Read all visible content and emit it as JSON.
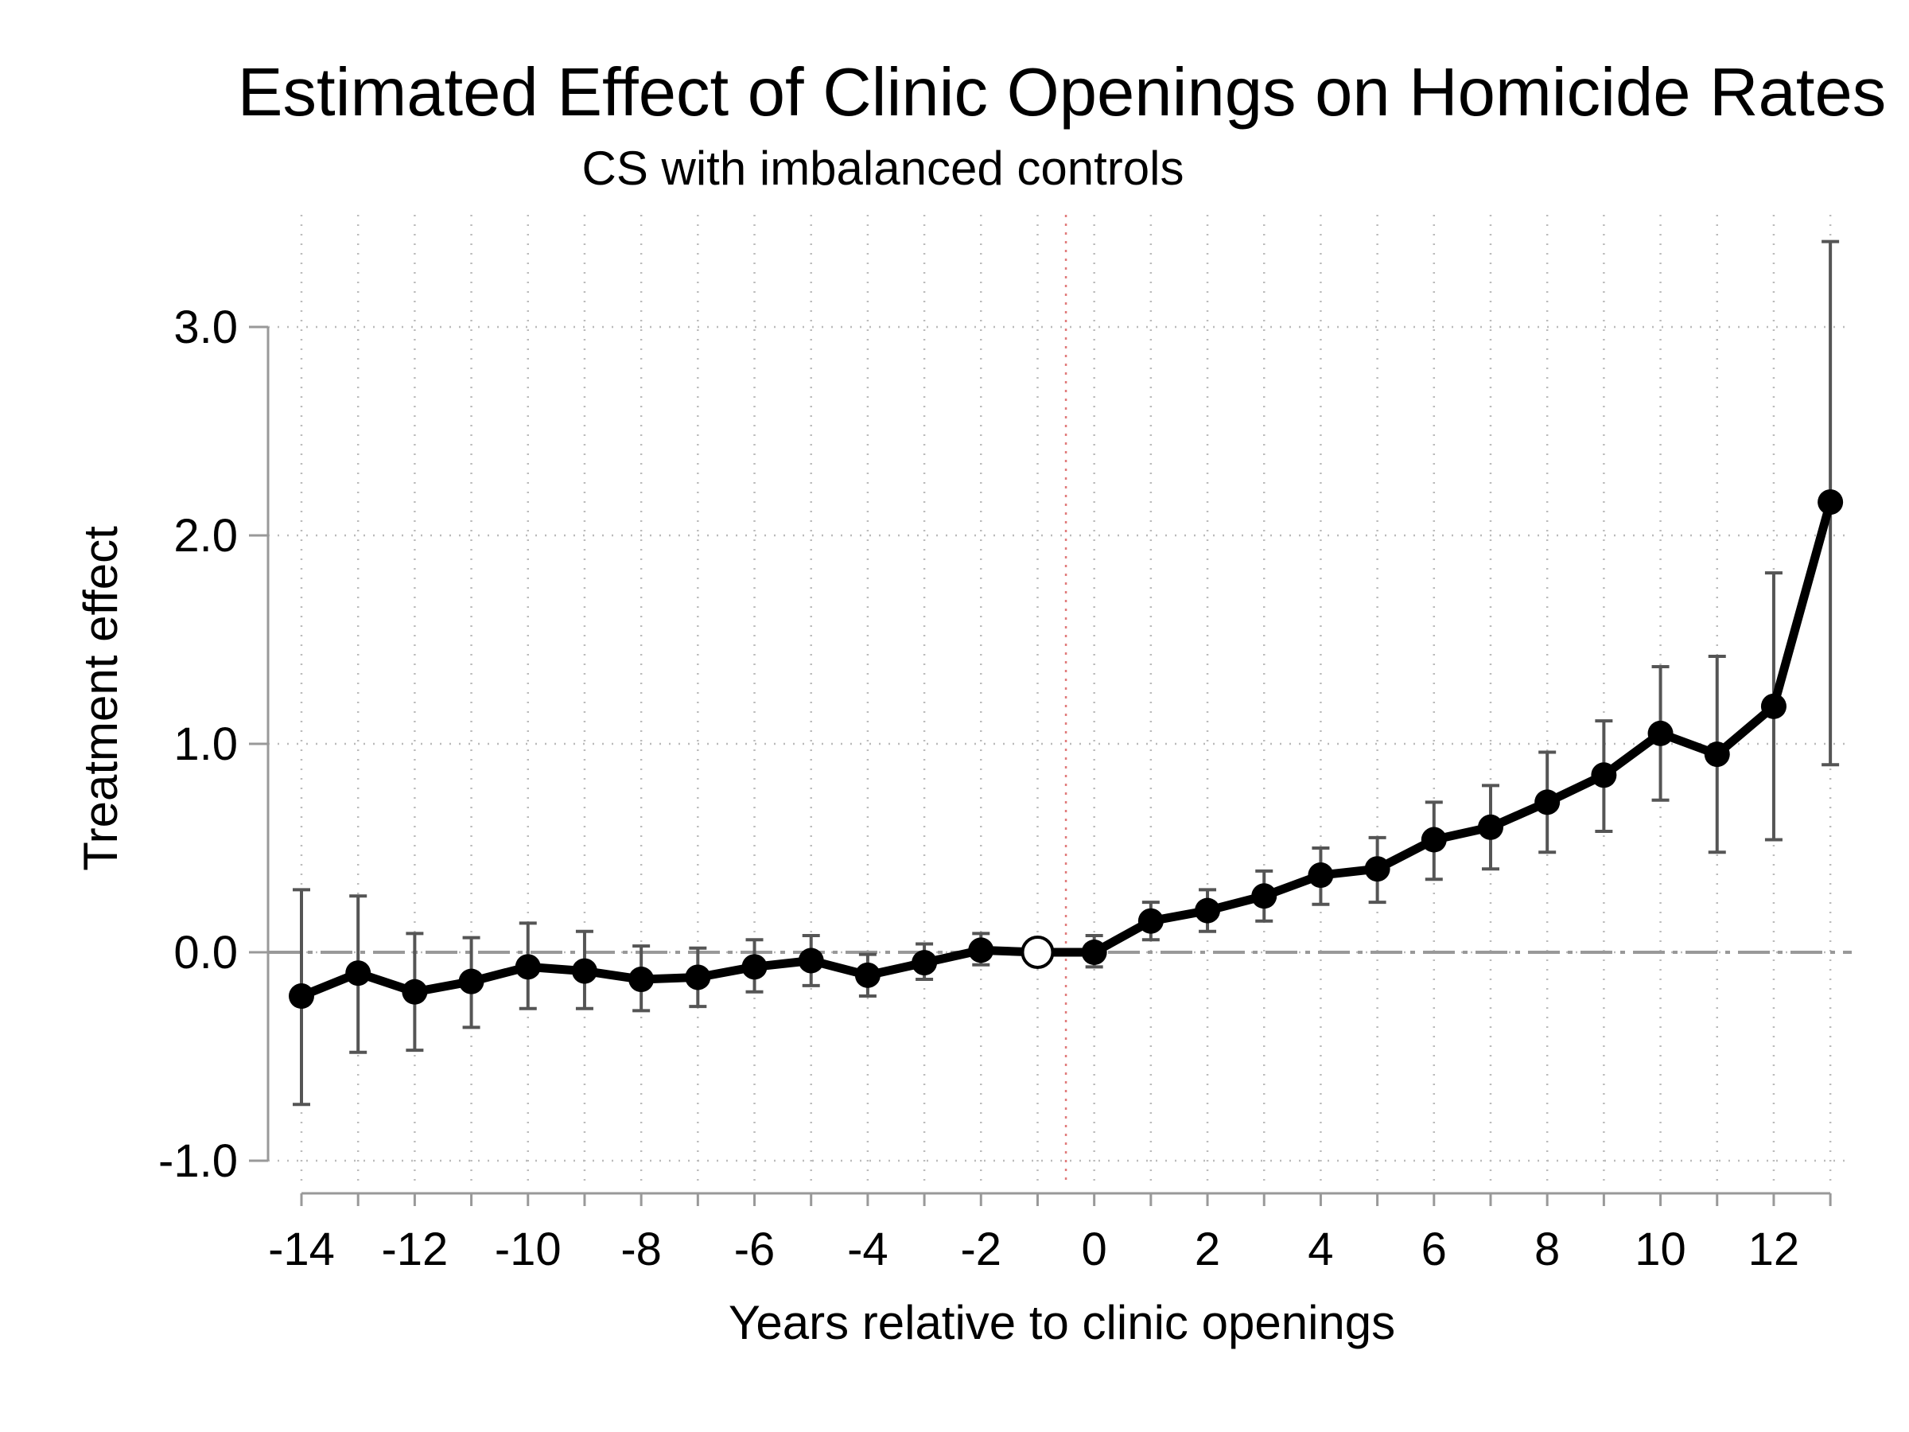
{
  "chart_data": {
    "type": "line",
    "title": "Estimated Effect of Clinic Openings on Homicide Rates",
    "subtitle": "CS with imbalanced controls",
    "xlabel": "Years relative to clinic openings",
    "ylabel": "Treatment effect",
    "xlim": [
      -14,
      13
    ],
    "ylim": [
      -1.0,
      3.0
    ],
    "x_ticks": [
      "-14",
      "-12",
      "-10",
      "-8",
      "-6",
      "-4",
      "-2",
      "0",
      "2",
      "4",
      "6",
      "8",
      "10",
      "12"
    ],
    "y_ticks": [
      "-1.0",
      "0.0",
      "1.0",
      "2.0",
      "3.0"
    ],
    "grid": true,
    "reference_lines": {
      "zero_line_y": 0.0,
      "treatment_line_x": -0.5
    },
    "colors": {
      "series": "#000000",
      "error_bars": "#555555",
      "grid": "#bbbbbb",
      "zero_line": "#999999",
      "treatment_line": "#e07a7a",
      "axis": "#999999"
    },
    "series": [
      {
        "x": [
          -14,
          -13,
          -12,
          -11,
          -10,
          -9,
          -8,
          -7,
          -6,
          -5,
          -4,
          -3,
          -2,
          -1,
          0,
          1,
          2,
          3,
          4,
          5,
          6,
          7,
          8,
          9,
          10,
          11,
          12,
          13
        ],
        "y": [
          -0.21,
          -0.1,
          -0.19,
          -0.14,
          -0.07,
          -0.09,
          -0.13,
          -0.12,
          -0.07,
          -0.04,
          -0.11,
          -0.05,
          0.01,
          0.0,
          0.0,
          0.15,
          0.2,
          0.27,
          0.37,
          0.4,
          0.54,
          0.6,
          0.72,
          0.85,
          1.05,
          0.95,
          1.18,
          2.16
        ],
        "ci_low": [
          -0.73,
          -0.48,
          -0.47,
          -0.36,
          -0.27,
          -0.27,
          -0.28,
          -0.26,
          -0.19,
          -0.16,
          -0.21,
          -0.13,
          -0.06,
          null,
          -0.07,
          0.06,
          0.1,
          0.15,
          0.23,
          0.24,
          0.35,
          0.4,
          0.48,
          0.58,
          0.73,
          0.48,
          0.54,
          0.9
        ],
        "ci_high": [
          0.3,
          0.27,
          0.09,
          0.07,
          0.14,
          0.1,
          0.03,
          0.02,
          0.06,
          0.08,
          -0.01,
          0.04,
          0.09,
          null,
          0.08,
          0.24,
          0.3,
          0.39,
          0.5,
          0.55,
          0.72,
          0.8,
          0.96,
          1.11,
          1.37,
          1.42,
          1.82,
          3.41
        ],
        "reference_point_x": -1
      }
    ]
  }
}
